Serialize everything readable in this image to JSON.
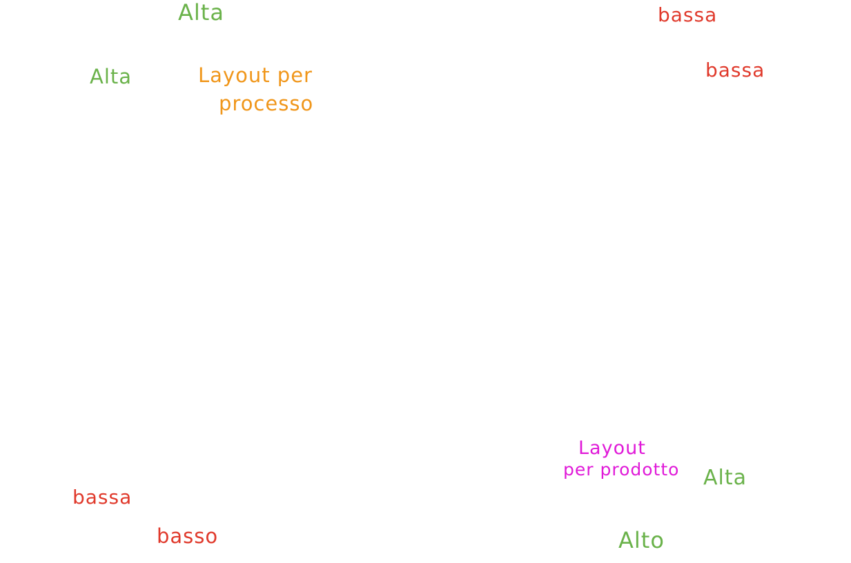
{
  "colors": {
    "green": "#6ab24a",
    "red": "#e0392b",
    "orange": "#f0961a",
    "magenta": "#e01ad8"
  },
  "notes": {
    "alta_top": "Alta",
    "bassa_top_right_1": "bassa",
    "bassa_top_right_2": "bassa",
    "alta_left": "Alta",
    "layout_processo_line1": "Layout per",
    "layout_processo_line2": "processo",
    "layout_prodotto_line1": "Layout",
    "layout_prodotto_line2": "per prodotto",
    "alta_bottom_right": "Alta",
    "bassa_bottom_left": "bassa",
    "basso_bottom_left": "basso",
    "alto_bottom_right": "Alto"
  }
}
